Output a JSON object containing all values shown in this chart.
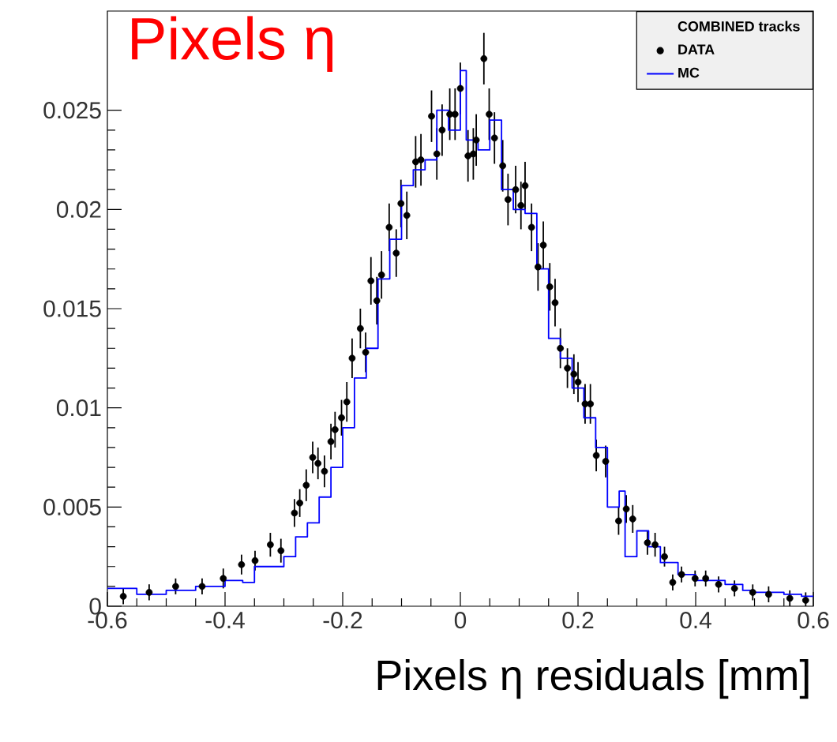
{
  "chart_data": {
    "type": "scatter",
    "title": "Pixels η",
    "xlabel": "Pixels η residuals [mm]",
    "legend_title": "COMBINED tracks",
    "legend": "top right",
    "grid": false,
    "xlim": [
      -0.6,
      0.6
    ],
    "ylim": [
      0,
      0.03
    ],
    "xticks": [
      -0.6,
      -0.4,
      -0.2,
      0,
      0.2,
      0.4,
      0.6
    ],
    "yticks": [
      0,
      0.005,
      0.01,
      0.015,
      0.02,
      0.025
    ],
    "series": [
      {
        "name": "DATA",
        "marker": "circle",
        "color": "#000000",
        "x": [
          -0.573,
          -0.529,
          -0.484,
          -0.439,
          -0.403,
          -0.372,
          -0.349,
          -0.323,
          -0.305,
          -0.282,
          -0.273,
          -0.262,
          -0.251,
          -0.242,
          -0.231,
          -0.22,
          -0.213,
          -0.202,
          -0.193,
          -0.184,
          -0.17,
          -0.161,
          -0.152,
          -0.142,
          -0.134,
          -0.121,
          -0.109,
          -0.101,
          -0.091,
          -0.076,
          -0.067,
          -0.049,
          -0.04,
          -0.031,
          -0.018,
          -0.009,
          0.0,
          0.013,
          0.022,
          0.027,
          0.04,
          0.049,
          0.058,
          0.072,
          0.081,
          0.094,
          0.103,
          0.11,
          0.121,
          0.132,
          0.141,
          0.152,
          0.161,
          0.17,
          0.182,
          0.193,
          0.2,
          0.212,
          0.221,
          0.231,
          0.247,
          0.269,
          0.282,
          0.293,
          0.318,
          0.331,
          0.347,
          0.361,
          0.376,
          0.399,
          0.417,
          0.439,
          0.466,
          0.497,
          0.524,
          0.56,
          0.587
        ],
        "values": [
          0.0005,
          0.0007,
          0.001,
          0.001,
          0.0014,
          0.0021,
          0.0023,
          0.0031,
          0.0028,
          0.0047,
          0.0052,
          0.0061,
          0.0075,
          0.0072,
          0.0068,
          0.0083,
          0.0089,
          0.0095,
          0.0103,
          0.0125,
          0.014,
          0.0128,
          0.0164,
          0.0154,
          0.0167,
          0.0191,
          0.0178,
          0.0203,
          0.0197,
          0.0224,
          0.0225,
          0.0247,
          0.0228,
          0.024,
          0.0248,
          0.0248,
          0.0261,
          0.0227,
          0.0228,
          0.0235,
          0.0276,
          0.0248,
          0.0236,
          0.0222,
          0.0205,
          0.021,
          0.0202,
          0.0212,
          0.0191,
          0.0171,
          0.0182,
          0.0161,
          0.0153,
          0.013,
          0.012,
          0.0117,
          0.0113,
          0.0102,
          0.0102,
          0.0076,
          0.0073,
          0.0043,
          0.0049,
          0.0044,
          0.0032,
          0.0031,
          0.0025,
          0.0012,
          0.0016,
          0.0014,
          0.0014,
          0.0011,
          0.0009,
          0.0007,
          0.0006,
          0.0004,
          0.0003
        ],
        "errors": [
          0.0004,
          0.0004,
          0.0004,
          0.0004,
          0.0005,
          0.0005,
          0.0005,
          0.0006,
          0.0006,
          0.0007,
          0.0007,
          0.0008,
          0.0008,
          0.0008,
          0.0008,
          0.0009,
          0.0009,
          0.0009,
          0.001,
          0.001,
          0.001,
          0.001,
          0.0012,
          0.0012,
          0.0012,
          0.0012,
          0.0012,
          0.0012,
          0.0012,
          0.0013,
          0.0013,
          0.0013,
          0.0013,
          0.0013,
          0.0013,
          0.0013,
          0.0013,
          0.0013,
          0.0013,
          0.0013,
          0.0013,
          0.0013,
          0.0013,
          0.0013,
          0.0013,
          0.0012,
          0.0012,
          0.0012,
          0.0012,
          0.0012,
          0.0012,
          0.0012,
          0.0012,
          0.001,
          0.001,
          0.001,
          0.001,
          0.001,
          0.001,
          0.0008,
          0.0008,
          0.0007,
          0.0007,
          0.0007,
          0.0006,
          0.0006,
          0.0005,
          0.0004,
          0.0004,
          0.0004,
          0.0004,
          0.0004,
          0.0004,
          0.0004,
          0.0004,
          0.0004,
          0.0004
        ]
      },
      {
        "name": "MC",
        "type": "step",
        "marker": "none",
        "color": "#0000ff",
        "x": [
          -0.6,
          -0.55,
          -0.5,
          -0.45,
          -0.4,
          -0.37,
          -0.35,
          -0.3,
          -0.28,
          -0.26,
          -0.24,
          -0.22,
          -0.2,
          -0.18,
          -0.16,
          -0.14,
          -0.12,
          -0.1,
          -0.08,
          -0.06,
          -0.04,
          -0.02,
          0.0,
          0.01,
          0.03,
          0.05,
          0.07,
          0.09,
          0.11,
          0.13,
          0.15,
          0.17,
          0.19,
          0.21,
          0.23,
          0.25,
          0.27,
          0.28,
          0.3,
          0.32,
          0.34,
          0.37,
          0.4,
          0.45,
          0.48,
          0.5,
          0.55,
          0.58,
          0.6
        ],
        "values": [
          0.0009,
          0.0006,
          0.0008,
          0.001,
          0.0013,
          0.0012,
          0.002,
          0.0025,
          0.0035,
          0.0042,
          0.0055,
          0.007,
          0.009,
          0.0115,
          0.013,
          0.0165,
          0.0185,
          0.0212,
          0.022,
          0.0225,
          0.025,
          0.024,
          0.027,
          0.0235,
          0.023,
          0.0245,
          0.021,
          0.02,
          0.0198,
          0.017,
          0.0135,
          0.0125,
          0.011,
          0.0095,
          0.008,
          0.005,
          0.0058,
          0.0025,
          0.0038,
          0.003,
          0.0022,
          0.0016,
          0.0013,
          0.0011,
          0.0008,
          0.0007,
          0.0006,
          0.0005,
          0.0005
        ]
      }
    ]
  }
}
